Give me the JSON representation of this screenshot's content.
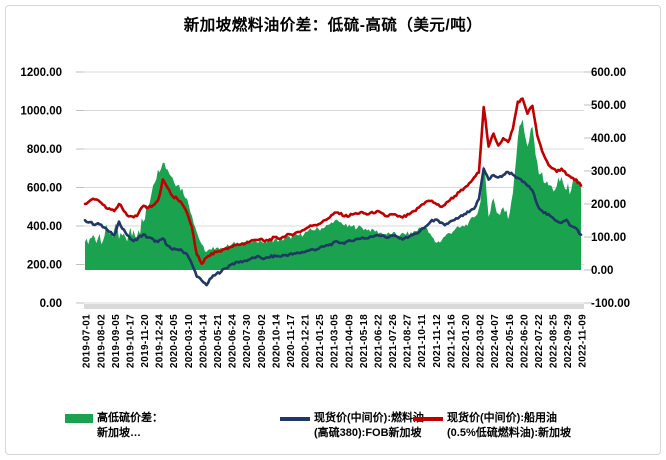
{
  "figure": {
    "title": "新加坡燃料油价差：低硫-高硫（美元/吨）"
  },
  "chart_data": {
    "type": "combo-area-line",
    "title": "新加坡燃料油价差：低硫-高硫（美元/吨）",
    "x_labels": [
      "2019-07-01",
      "2019-08-02",
      "2019-09-05",
      "2019-10-17",
      "2019-11-20",
      "2019-12-24",
      "2020-02-05",
      "2020-03-10",
      "2020-04-14",
      "2020-05-21",
      "2020-06-24",
      "2020-07-30",
      "2020-09-02",
      "2020-10-14",
      "2020-11-17",
      "2020-12-21",
      "2021-01-25",
      "2021-03-05",
      "2021-04-09",
      "2021-05-18",
      "2021-06-22",
      "2021-07-26",
      "2021-08-27",
      "2021-10-11",
      "2021-11-12",
      "2021-12-16",
      "2022-01-20",
      "2022-03-02",
      "2022-04-07",
      "2022-05-16",
      "2022-06-20",
      "2022-07-22",
      "2022-08-25",
      "2022-09-29",
      "2022-11-09"
    ],
    "left_axis": {
      "min": 0,
      "max": 1200,
      "step": 200,
      "tick_labels": [
        "0.00",
        "200.00",
        "400.00",
        "600.00",
        "800.00",
        "1000.00",
        "1200.00"
      ]
    },
    "right_axis": {
      "min": -100,
      "max": 600,
      "step": 100,
      "tick_labels": [
        "-100.00",
        "0.00",
        "100.00",
        "200.00",
        "300.00",
        "400.00",
        "500.00",
        "600.00"
      ]
    },
    "grid": true,
    "legend_position": "bottom",
    "series": [
      {
        "name": "高低硫价差：新加坡…",
        "legend_lines": [
          "高低硫价差：",
          "新加坡…"
        ],
        "type": "area",
        "axis": "right",
        "color": "#1ba24f",
        "values": [
          85,
          90,
          100,
          110,
          105,
          115,
          120,
          95,
          100,
          105,
          120,
          125,
          145,
          190,
          260,
          300,
          330,
          305,
          280,
          260,
          245,
          215,
          165,
          115,
          75,
          55,
          60,
          70,
          65,
          70,
          75,
          80,
          85,
          85,
          85,
          90,
          90,
          85,
          90,
          92,
          90,
          95,
          100,
          102,
          105,
          110,
          118,
          122,
          125,
          128,
          135,
          145,
          148,
          140,
          130,
          132,
          130,
          128,
          122,
          122,
          118,
          112,
          108,
          108,
          108,
          108,
          108,
          112,
          118,
          128,
          128,
          108,
          85,
          85,
          102,
          112,
          122,
          128,
          132,
          145,
          160,
          185,
          310,
          170,
          215,
          170,
          190,
          155,
          240,
          400,
          460,
          370,
          430,
          320,
          290,
          262,
          250,
          250,
          280,
          240,
          250,
          262,
          248
        ]
      },
      {
        "name": "现货价(中间价):燃料油(高硫380):FOB新加坡",
        "legend_lines": [
          "现货价(中间价):燃料油",
          "(高硫380):FOB新加坡"
        ],
        "type": "line",
        "axis": "left",
        "color": "#1f3864",
        "values": [
          430,
          420,
          405,
          410,
          395,
          370,
          350,
          420,
          380,
          345,
          320,
          340,
          355,
          340,
          330,
          315,
          335,
          300,
          275,
          280,
          270,
          255,
          200,
          140,
          115,
          95,
          130,
          150,
          165,
          180,
          200,
          210,
          215,
          220,
          228,
          235,
          238,
          230,
          238,
          245,
          242,
          248,
          252,
          255,
          260,
          265,
          272,
          278,
          282,
          292,
          300,
          310,
          318,
          312,
          318,
          325,
          332,
          340,
          335,
          345,
          355,
          350,
          340,
          350,
          345,
          335,
          340,
          350,
          360,
          375,
          395,
          420,
          435,
          415,
          405,
          420,
          430,
          445,
          460,
          472,
          488,
          540,
          700,
          640,
          665,
          650,
          665,
          680,
          668,
          648,
          630,
          610,
          585,
          510,
          480,
          460,
          445,
          428,
          418,
          430,
          398,
          388,
          355
        ]
      },
      {
        "name": "现货价(中间价):船用油(0.5%低硫燃料油):新加坡",
        "legend_lines": [
          "现货价(中间价):船用油",
          "(0.5%低硫燃料油):新加坡"
        ],
        "type": "line",
        "axis": "left",
        "color": "#c00000",
        "values": [
          515,
          530,
          540,
          525,
          505,
          490,
          475,
          515,
          480,
          450,
          445,
          465,
          505,
          495,
          505,
          530,
          640,
          600,
          555,
          540,
          515,
          470,
          390,
          250,
          205,
          235,
          255,
          265,
          270,
          285,
          290,
          300,
          305,
          310,
          320,
          330,
          330,
          320,
          330,
          340,
          335,
          345,
          355,
          360,
          370,
          380,
          395,
          405,
          410,
          425,
          440,
          460,
          470,
          455,
          450,
          460,
          465,
          470,
          460,
          470,
          475,
          465,
          450,
          460,
          455,
          445,
          450,
          465,
          480,
          505,
          525,
          530,
          520,
          500,
          510,
          535,
          555,
          575,
          595,
          620,
          650,
          680,
          1020,
          810,
          880,
          820,
          855,
          835,
          905,
          1045,
          1060,
          985,
          1025,
          870,
          790,
          735,
          700,
          680,
          700,
          670,
          650,
          640,
          610
        ]
      }
    ],
    "colors": {
      "grid": "#d9d9d9",
      "axis_strip": "#d9d9d9",
      "tick": "#bfbfbf",
      "text": "#000000",
      "border": "#d6d6d6"
    },
    "noise": {
      "early_frac": 0.13,
      "early_amp": 30,
      "mid_frac": 0.2,
      "mid_amp": 14,
      "late_frac": 0.79,
      "late_amp": 22,
      "base_amp": 8,
      "line_amp": 7
    }
  }
}
